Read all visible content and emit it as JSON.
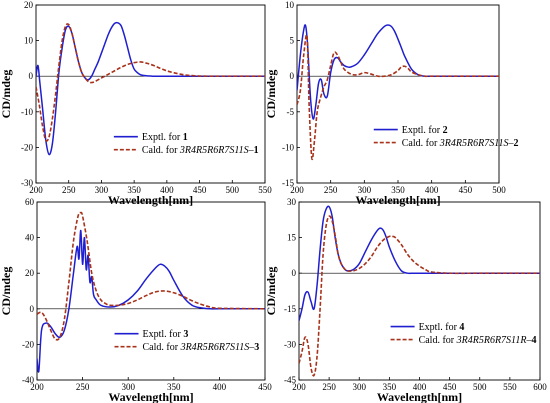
{
  "colors": {
    "experimental": "#1f1fd0",
    "calculated": "#a8321a",
    "band": "#f7dde4",
    "axis": "#000000"
  },
  "chart_data": [
    {
      "type": "line",
      "panel": "top-left",
      "title": "",
      "xlabel": "Wavelength[nm]",
      "ylabel": "CD/mdeg",
      "xlim": [
        200,
        550
      ],
      "ylim": [
        -30,
        20
      ],
      "xticks": [
        200,
        250,
        300,
        350,
        400,
        450,
        500,
        550
      ],
      "yticks": [
        -30,
        -20,
        -10,
        0,
        10,
        20
      ],
      "legend_position": "lower-center",
      "series": [
        {
          "name": "Exptl. for 1",
          "legend_prefix": "Exptl. for ",
          "legend_compound": "1",
          "style": "solid",
          "x": [
            200,
            203,
            206,
            210,
            215,
            220,
            225,
            230,
            235,
            240,
            245,
            250,
            255,
            260,
            265,
            270,
            275,
            280,
            285,
            290,
            295,
            300,
            305,
            310,
            315,
            320,
            325,
            330,
            335,
            340,
            345,
            350,
            355,
            360,
            365,
            370,
            375,
            380,
            385,
            390,
            400,
            420,
            450,
            500,
            550
          ],
          "y": [
            0,
            3,
            -2,
            -9,
            -18,
            -22,
            -19,
            -10,
            1,
            8,
            13,
            14,
            12,
            8,
            4,
            1,
            -0.5,
            -1,
            0,
            2,
            4,
            6.5,
            9,
            11.5,
            13.5,
            14.8,
            15,
            14.2,
            11.5,
            8,
            4.5,
            2,
            1,
            0.4,
            0.2,
            0.1,
            0.05,
            0,
            0,
            0,
            0,
            0,
            0,
            0,
            0
          ]
        },
        {
          "name": "Cald. for 3R4R5R6R7S11S-1",
          "legend_prefix": "Cald. for ",
          "legend_config": "3R4R5R6R7S11S",
          "legend_compound": "1",
          "style": "dashed",
          "x": [
            200,
            205,
            210,
            215,
            220,
            225,
            230,
            235,
            240,
            245,
            250,
            255,
            260,
            265,
            270,
            275,
            280,
            285,
            290,
            300,
            310,
            320,
            330,
            340,
            350,
            360,
            370,
            380,
            390,
            400,
            410,
            420,
            430,
            440,
            450,
            470,
            500,
            550
          ],
          "y": [
            -3,
            -8,
            -14,
            -18,
            -17,
            -12,
            -5,
            3,
            10,
            14,
            14.5,
            12,
            8,
            4,
            1,
            -0.5,
            -1.5,
            -1.8,
            -1.5,
            -0.5,
            0.5,
            1.5,
            2.5,
            3.3,
            3.8,
            4,
            3.6,
            3,
            2.2,
            1.5,
            1,
            0.6,
            0.3,
            0.15,
            0.05,
            0,
            0,
            0
          ]
        }
      ]
    },
    {
      "type": "line",
      "panel": "top-right",
      "title": "",
      "xlabel": "Wavelength[nm]",
      "ylabel": "CD/mdeg",
      "xlim": [
        200,
        500
      ],
      "ylim": [
        -15,
        10
      ],
      "xticks": [
        200,
        250,
        300,
        350,
        400,
        450,
        500
      ],
      "yticks": [
        -15,
        -10,
        -5,
        0,
        5,
        10
      ],
      "legend_position": "lower-right",
      "series": [
        {
          "name": "Exptl. for 2",
          "legend_prefix": "Exptl. for ",
          "legend_compound": "2",
          "style": "solid",
          "x": [
            200,
            205,
            210,
            213,
            216,
            220,
            224,
            228,
            232,
            236,
            240,
            245,
            250,
            255,
            260,
            265,
            270,
            275,
            280,
            290,
            300,
            310,
            320,
            330,
            335,
            340,
            345,
            350,
            355,
            360,
            370,
            380,
            390,
            400,
            450,
            500
          ],
          "y": [
            -2,
            3,
            6.5,
            7,
            4,
            -3,
            -6,
            -4,
            -1,
            -0.5,
            -2.5,
            -2.8,
            0.5,
            2.3,
            2.6,
            2,
            1.5,
            1.3,
            1.3,
            1.8,
            3,
            4.5,
            6,
            7,
            7.2,
            7,
            6.3,
            5.2,
            4,
            2.8,
            1,
            0.2,
            0,
            0,
            0,
            0
          ]
        },
        {
          "name": "Cald. for 3R4R5R6R7S11S-2",
          "legend_prefix": "Cald. for ",
          "legend_config": "3R4R5R6R7S11S",
          "legend_compound": "2",
          "style": "dashed",
          "x": [
            200,
            205,
            210,
            215,
            218,
            222,
            226,
            230,
            235,
            240,
            245,
            250,
            255,
            260,
            265,
            270,
            280,
            290,
            300,
            310,
            320,
            330,
            340,
            350,
            355,
            360,
            365,
            370,
            380,
            390,
            400,
            450,
            500
          ],
          "y": [
            -4,
            -2,
            3,
            5.5,
            -4,
            -11.5,
            -9,
            -5,
            -3,
            -1.5,
            -0.5,
            1.5,
            3.3,
            3,
            2,
            1,
            0.3,
            0.2,
            0.5,
            0.3,
            0,
            0,
            0.2,
            0.8,
            1.3,
            1.4,
            1.1,
            0.6,
            0.2,
            0,
            0,
            0,
            0
          ]
        }
      ]
    },
    {
      "type": "line",
      "panel": "bottom-left",
      "title": "",
      "xlabel": "Wavelength[nm]",
      "ylabel": "CD/mdeg",
      "xlim": [
        200,
        450
      ],
      "ylim": [
        -40,
        60
      ],
      "xticks": [
        200,
        250,
        300,
        350,
        400,
        450
      ],
      "yticks": [
        -40,
        -20,
        0,
        20,
        40,
        60
      ],
      "legend_position": "lower-center",
      "series": [
        {
          "name": "Exptl. for 3",
          "legend_prefix": "Exptl. for ",
          "legend_compound": "3",
          "style": "solid",
          "x": [
            200,
            202,
            205,
            210,
            215,
            220,
            225,
            230,
            235,
            240,
            244,
            246,
            248,
            250,
            252,
            254,
            256,
            258,
            260,
            262,
            265,
            270,
            280,
            290,
            300,
            310,
            320,
            330,
            335,
            340,
            345,
            350,
            360,
            370,
            380,
            390,
            400,
            450
          ],
          "y": [
            -28,
            -35,
            -12,
            -8,
            -10,
            -14,
            -16,
            -12,
            0,
            20,
            35,
            28,
            44,
            25,
            40,
            22,
            30,
            15,
            18,
            8,
            5,
            2,
            1,
            2,
            5,
            10,
            17,
            23,
            25,
            24,
            21,
            16,
            7,
            2,
            0.5,
            0,
            0,
            0
          ]
        },
        {
          "name": "Cald. for 3R4R5R6R7S11S-3",
          "legend_prefix": "Cald. for ",
          "legend_config": "3R4R5R6R7S11S",
          "legend_compound": "3",
          "style": "dashed",
          "x": [
            200,
            205,
            210,
            215,
            220,
            225,
            230,
            235,
            240,
            245,
            248,
            250,
            255,
            260,
            265,
            270,
            275,
            280,
            290,
            300,
            310,
            320,
            330,
            340,
            350,
            360,
            370,
            380,
            390,
            400,
            450
          ],
          "y": [
            -3,
            -2,
            -6,
            -12,
            -17,
            -16,
            -6,
            15,
            38,
            52,
            54,
            52,
            38,
            20,
            10,
            5,
            3,
            2,
            2,
            3,
            5,
            7.5,
            9.5,
            10,
            9,
            7,
            4.5,
            2.5,
            1,
            0.3,
            0
          ]
        }
      ]
    },
    {
      "type": "line",
      "panel": "bottom-right",
      "title": "",
      "xlabel": "Wavelength[nm]",
      "ylabel": "CD/mdeg",
      "xlim": [
        200,
        600
      ],
      "ylim": [
        -45,
        30
      ],
      "xticks": [
        200,
        250,
        300,
        350,
        400,
        450,
        500,
        550,
        600
      ],
      "yticks": [
        -45,
        -30,
        -15,
        0,
        15,
        30
      ],
      "legend_position": "lower-right",
      "series": [
        {
          "name": "Exptl. for 4",
          "legend_prefix": "Exptl. for ",
          "legend_compound": "4",
          "style": "solid",
          "x": [
            200,
            205,
            210,
            215,
            220,
            225,
            230,
            235,
            240,
            245,
            250,
            255,
            260,
            265,
            270,
            275,
            280,
            290,
            300,
            310,
            320,
            330,
            335,
            340,
            345,
            350,
            360,
            370,
            380,
            390,
            400,
            450,
            500,
            550,
            600
          ],
          "y": [
            -20,
            -15,
            -9,
            -8,
            -12,
            -15,
            -5,
            10,
            22,
            27,
            28,
            24,
            15,
            8,
            4,
            2,
            1,
            1.5,
            4,
            9,
            14,
            18,
            19,
            18,
            15,
            11,
            5,
            1,
            0,
            0,
            0,
            0,
            0,
            0,
            0
          ]
        },
        {
          "name": "Cald. for 3R4R5R6R7S11R-4",
          "legend_prefix": "Cald. for ",
          "legend_config": "3R4R5R6R7S11R",
          "legend_compound": "4",
          "style": "dashed",
          "x": [
            200,
            205,
            210,
            215,
            220,
            225,
            230,
            235,
            240,
            245,
            250,
            255,
            260,
            265,
            270,
            275,
            280,
            290,
            300,
            310,
            320,
            330,
            340,
            350,
            355,
            360,
            370,
            380,
            390,
            400,
            410,
            420,
            450,
            500,
            550,
            600
          ],
          "y": [
            -38,
            -33,
            -27,
            -30,
            -40,
            -43,
            -35,
            -15,
            8,
            20,
            24,
            22,
            16,
            8,
            4,
            2,
            1,
            1,
            2,
            4,
            7,
            11,
            14,
            15.5,
            15.5,
            15,
            12,
            8,
            5,
            3,
            1.5,
            0.5,
            0,
            0,
            0,
            0
          ]
        }
      ]
    }
  ]
}
